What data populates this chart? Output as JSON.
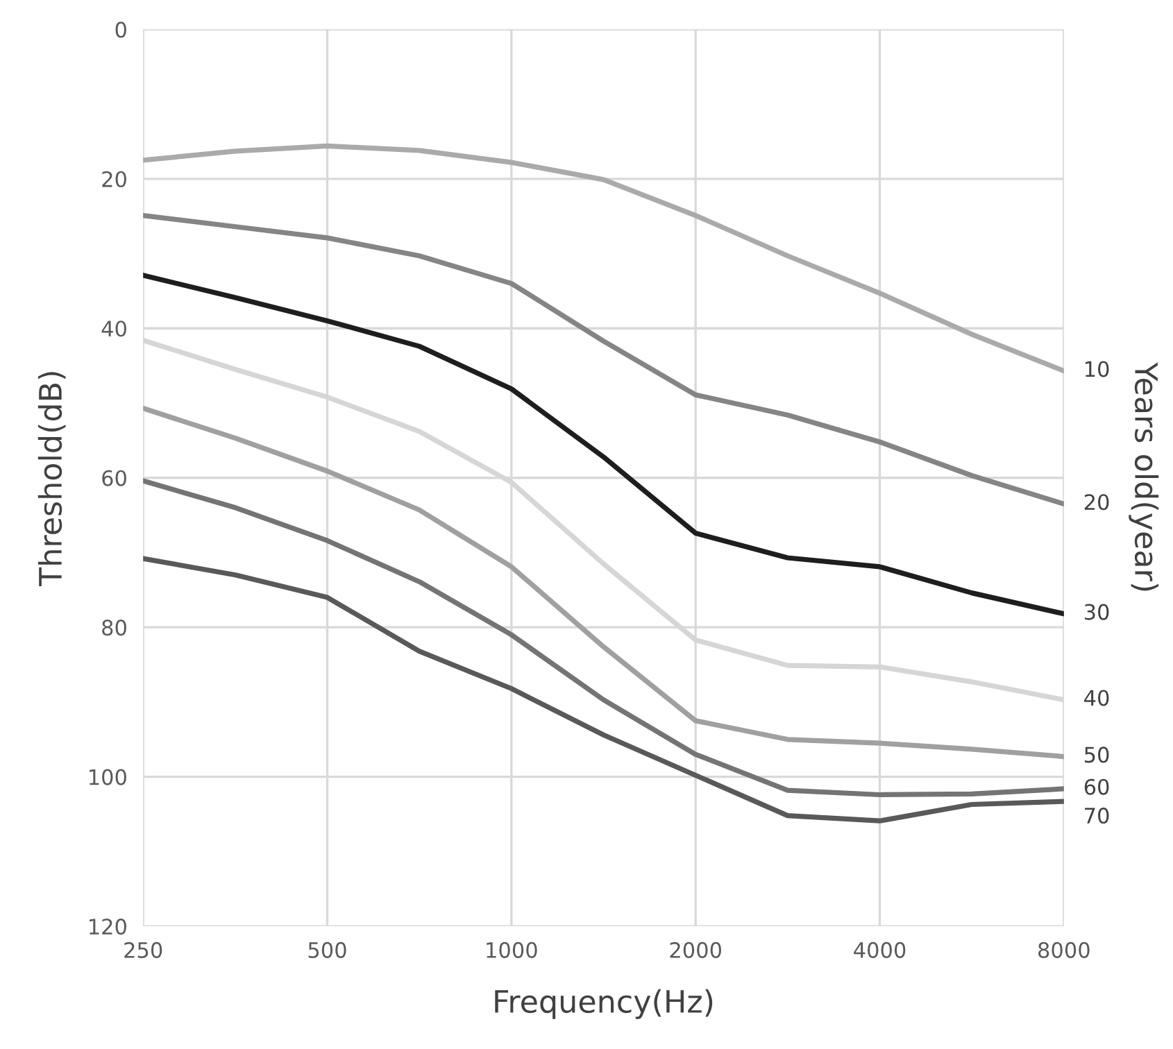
{
  "chart_data": {
    "type": "line",
    "xlabel": "Frequency(Hz)",
    "ylabel": "Threshold(dB)",
    "y2label": "Years old(year)",
    "x": [
      250,
      354,
      500,
      707,
      1000,
      1414,
      2000,
      2828,
      4000,
      5657,
      8000
    ],
    "log": "x",
    "xlim": [
      250,
      8000
    ],
    "xticks": [
      250,
      500,
      1000,
      2000,
      4000,
      8000
    ],
    "ylim": [
      120,
      0
    ],
    "yticks": [
      0,
      20,
      40,
      60,
      80,
      100,
      120
    ],
    "grid": true,
    "marker": "none",
    "line_style": "solid",
    "series": [
      {
        "name": "10",
        "color": "#aaaaaa",
        "values": [
          17.5,
          16.3,
          15.6,
          16.2,
          17.8,
          20.1,
          24.9,
          30.3,
          35.3,
          40.8,
          45.7
        ]
      },
      {
        "name": "20",
        "color": "#858585",
        "values": [
          24.9,
          26.4,
          27.9,
          30.3,
          34.0,
          41.7,
          48.9,
          51.6,
          55.2,
          59.7,
          63.5
        ]
      },
      {
        "name": "30",
        "color": "#1e1e1e",
        "values": [
          32.9,
          35.9,
          39.0,
          42.4,
          48.1,
          57.2,
          67.4,
          70.7,
          71.9,
          75.4,
          78.2
        ]
      },
      {
        "name": "40",
        "color": "#d6d6d6",
        "values": [
          41.6,
          45.5,
          49.2,
          53.8,
          60.6,
          71.5,
          81.7,
          85.1,
          85.3,
          87.3,
          89.7
        ]
      },
      {
        "name": "50",
        "color": "#a0a0a0",
        "values": [
          50.7,
          54.7,
          59.1,
          64.3,
          71.9,
          82.6,
          92.5,
          95.0,
          95.5,
          96.3,
          97.3
        ]
      },
      {
        "name": "60",
        "color": "#747474",
        "values": [
          60.4,
          64.0,
          68.4,
          73.9,
          81.0,
          89.7,
          97.0,
          101.8,
          102.4,
          102.3,
          101.6
        ]
      },
      {
        "name": "70",
        "color": "#595959",
        "values": [
          70.8,
          73.0,
          76.0,
          83.2,
          88.2,
          94.4,
          99.8,
          105.2,
          105.9,
          103.7,
          103.3
        ]
      }
    ]
  }
}
